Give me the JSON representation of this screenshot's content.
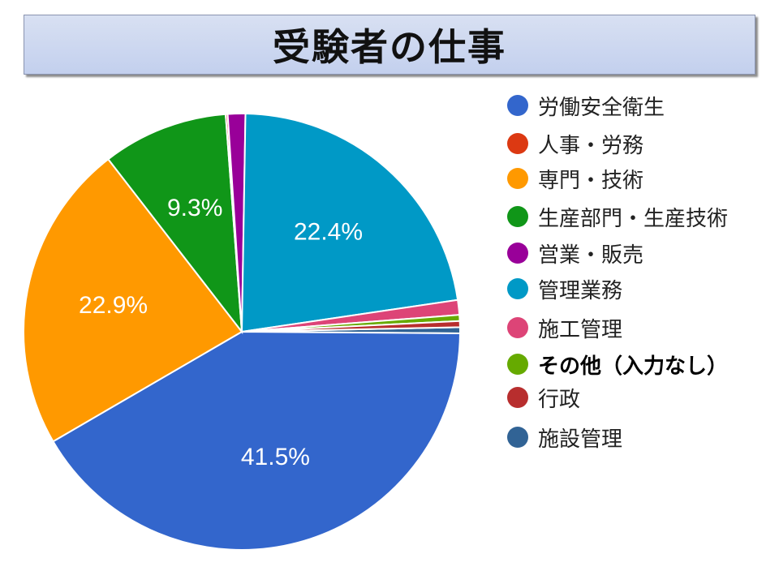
{
  "title": "受験者の仕事",
  "chart_data": {
    "type": "pie",
    "title": "受験者の仕事",
    "legend_position": "right",
    "slices": [
      {
        "name": "労働安全衛生",
        "value": 41.5,
        "label": "41.5%",
        "color": "#3366cc"
      },
      {
        "name": "人事・労務",
        "value": 0.15,
        "label": "",
        "color": "#dc3912"
      },
      {
        "name": "専門・技術",
        "value": 22.9,
        "label": "22.9%",
        "color": "#ff9900"
      },
      {
        "name": "生産部門・生産技術",
        "value": 9.3,
        "label": "9.3%",
        "color": "#109618"
      },
      {
        "name": "営業・販売",
        "value": 1.3,
        "label": "",
        "color": "#990099"
      },
      {
        "name": "管理業務",
        "value": 22.4,
        "label": "22.4%",
        "color": "#0099c6"
      },
      {
        "name": "施工管理",
        "value": 1.1,
        "label": "",
        "color": "#dd4477"
      },
      {
        "name": "その他（入力なし）",
        "value": 0.45,
        "label": "",
        "color": "#66aa00"
      },
      {
        "name": "行政",
        "value": 0.45,
        "label": "",
        "color": "#b82e2e"
      },
      {
        "name": "施設管理",
        "value": 0.45,
        "label": "",
        "color": "#316395"
      }
    ],
    "draw_order": [
      "施設管理",
      "労働安全衛生",
      "専門・技術",
      "生産部門・生産技術",
      "人事・労務",
      "営業・販売",
      "管理業務",
      "施工管理",
      "その他（入力なし）",
      "行政"
    ]
  },
  "legend": {
    "items": [
      {
        "label": "労働安全衛生",
        "color": "#3366cc",
        "bold": false
      },
      {
        "label": "人事・労務",
        "color": "#dc3912",
        "bold": false
      },
      {
        "label": "専門・技術",
        "color": "#ff9900",
        "bold": false
      },
      {
        "label": "生産部門・生産技術",
        "color": "#109618",
        "bold": false
      },
      {
        "label": "営業・販売",
        "color": "#990099",
        "bold": false
      },
      {
        "label": "管理業務",
        "color": "#0099c6",
        "bold": false
      },
      {
        "label": "施工管理",
        "color": "#dd4477",
        "bold": false
      },
      {
        "label": "その他（入力なし）",
        "color": "#66aa00",
        "bold": true
      },
      {
        "label": "行政",
        "color": "#b82e2e",
        "bold": false
      },
      {
        "label": "施設管理",
        "color": "#316395",
        "bold": false
      }
    ]
  }
}
